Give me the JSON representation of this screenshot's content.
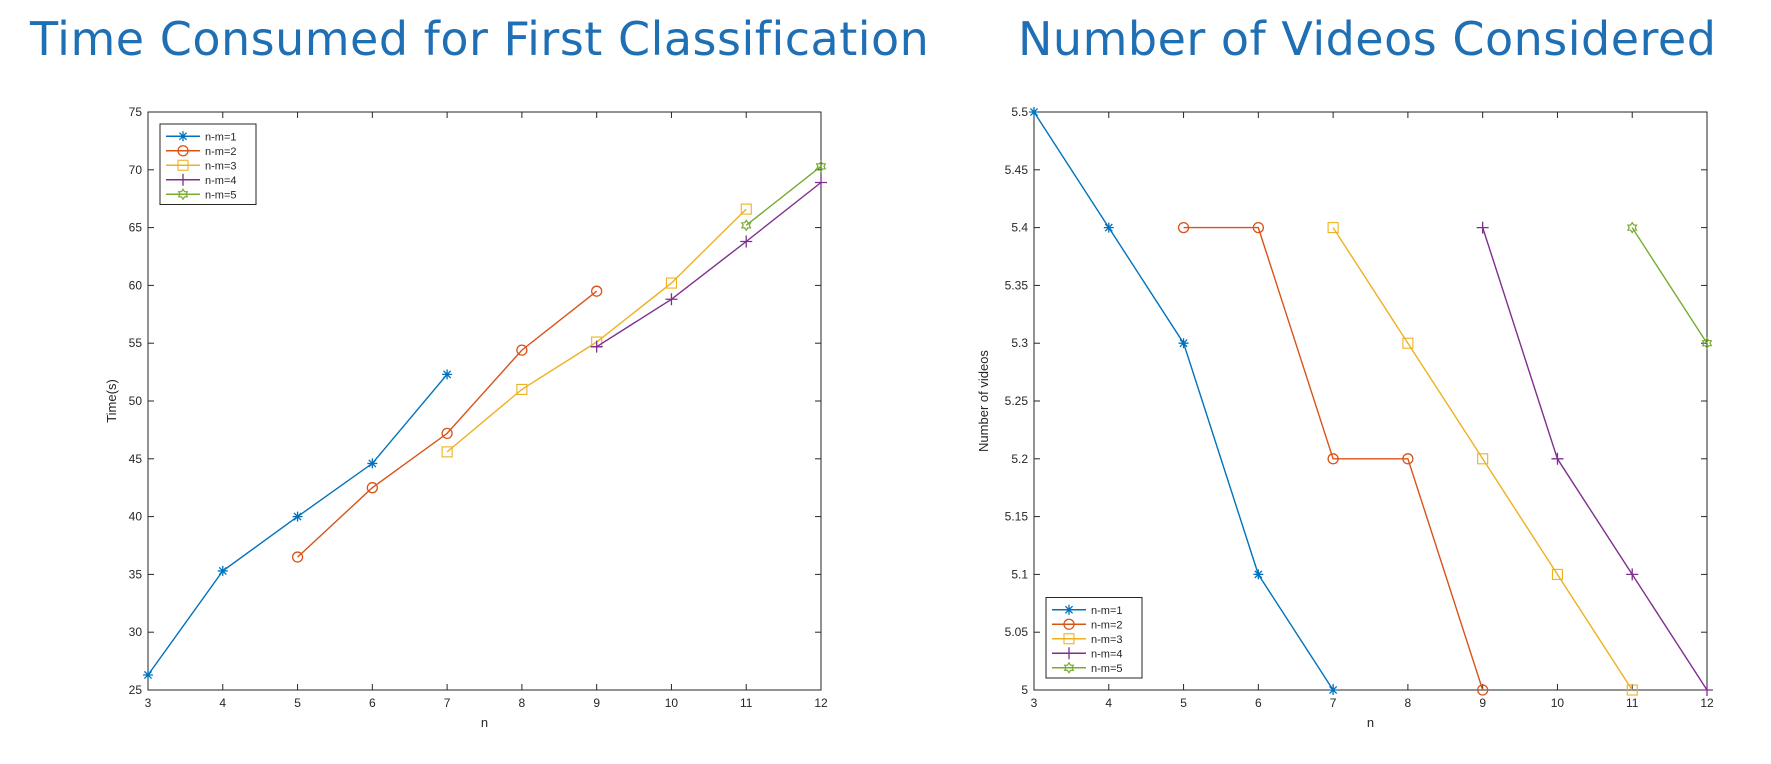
{
  "titles": {
    "left": "Time Consumed for First Classification",
    "right": "Number of Videos Considered"
  },
  "chart_data": [
    {
      "type": "line",
      "xlabel": "n",
      "ylabel": "Time(s)",
      "xlim": [
        3,
        12
      ],
      "ylim": [
        25,
        75
      ],
      "xticks": [
        3,
        4,
        5,
        6,
        7,
        8,
        9,
        10,
        11,
        12
      ],
      "yticks": [
        25,
        30,
        35,
        40,
        45,
        50,
        55,
        60,
        65,
        70,
        75
      ],
      "grid": false,
      "legend_position": "top-left",
      "series": [
        {
          "name": "n-m=1",
          "color": "#0072bd",
          "marker": "asterisk",
          "x": [
            3,
            4,
            5,
            6,
            7
          ],
          "y": [
            26.3,
            35.3,
            40.0,
            44.6,
            52.3
          ]
        },
        {
          "name": "n-m=2",
          "color": "#d95319",
          "marker": "circle",
          "x": [
            5,
            6,
            7,
            8,
            9
          ],
          "y": [
            36.5,
            42.5,
            47.2,
            54.4,
            59.5
          ]
        },
        {
          "name": "n-m=3",
          "color": "#edb120",
          "marker": "square",
          "x": [
            7,
            8,
            9,
            10,
            11
          ],
          "y": [
            45.6,
            51.0,
            55.1,
            60.2,
            66.6
          ]
        },
        {
          "name": "n-m=4",
          "color": "#7e2f8e",
          "marker": "plus",
          "x": [
            9,
            10,
            11,
            12
          ],
          "y": [
            54.7,
            58.8,
            63.8,
            68.9
          ]
        },
        {
          "name": "n-m=5",
          "color": "#77ac30",
          "marker": "hexagram",
          "x": [
            11,
            12
          ],
          "y": [
            65.2,
            70.3
          ]
        }
      ]
    },
    {
      "type": "line",
      "xlabel": "n",
      "ylabel": "Number of videos",
      "xlim": [
        3,
        12
      ],
      "ylim": [
        5,
        5.5
      ],
      "xticks": [
        3,
        4,
        5,
        6,
        7,
        8,
        9,
        10,
        11,
        12
      ],
      "yticks": [
        5,
        5.05,
        5.1,
        5.15,
        5.2,
        5.25,
        5.3,
        5.35,
        5.4,
        5.45,
        5.5
      ],
      "grid": false,
      "legend_position": "bottom-left",
      "series": [
        {
          "name": "n-m=1",
          "color": "#0072bd",
          "marker": "asterisk",
          "x": [
            3,
            4,
            5,
            6,
            7
          ],
          "y": [
            5.5,
            5.4,
            5.3,
            5.1,
            5.0
          ]
        },
        {
          "name": "n-m=2",
          "color": "#d95319",
          "marker": "circle",
          "x": [
            5,
            6,
            7,
            8,
            9
          ],
          "y": [
            5.4,
            5.4,
            5.2,
            5.2,
            5.0
          ]
        },
        {
          "name": "n-m=3",
          "color": "#edb120",
          "marker": "square",
          "x": [
            7,
            8,
            9,
            10,
            11
          ],
          "y": [
            5.4,
            5.3,
            5.2,
            5.1,
            5.0
          ]
        },
        {
          "name": "n-m=4",
          "color": "#7e2f8e",
          "marker": "plus",
          "x": [
            9,
            10,
            11,
            12
          ],
          "y": [
            5.4,
            5.2,
            5.1,
            5.0
          ]
        },
        {
          "name": "n-m=5",
          "color": "#77ac30",
          "marker": "hexagram",
          "x": [
            11,
            12
          ],
          "y": [
            5.4,
            5.3
          ]
        }
      ]
    }
  ]
}
